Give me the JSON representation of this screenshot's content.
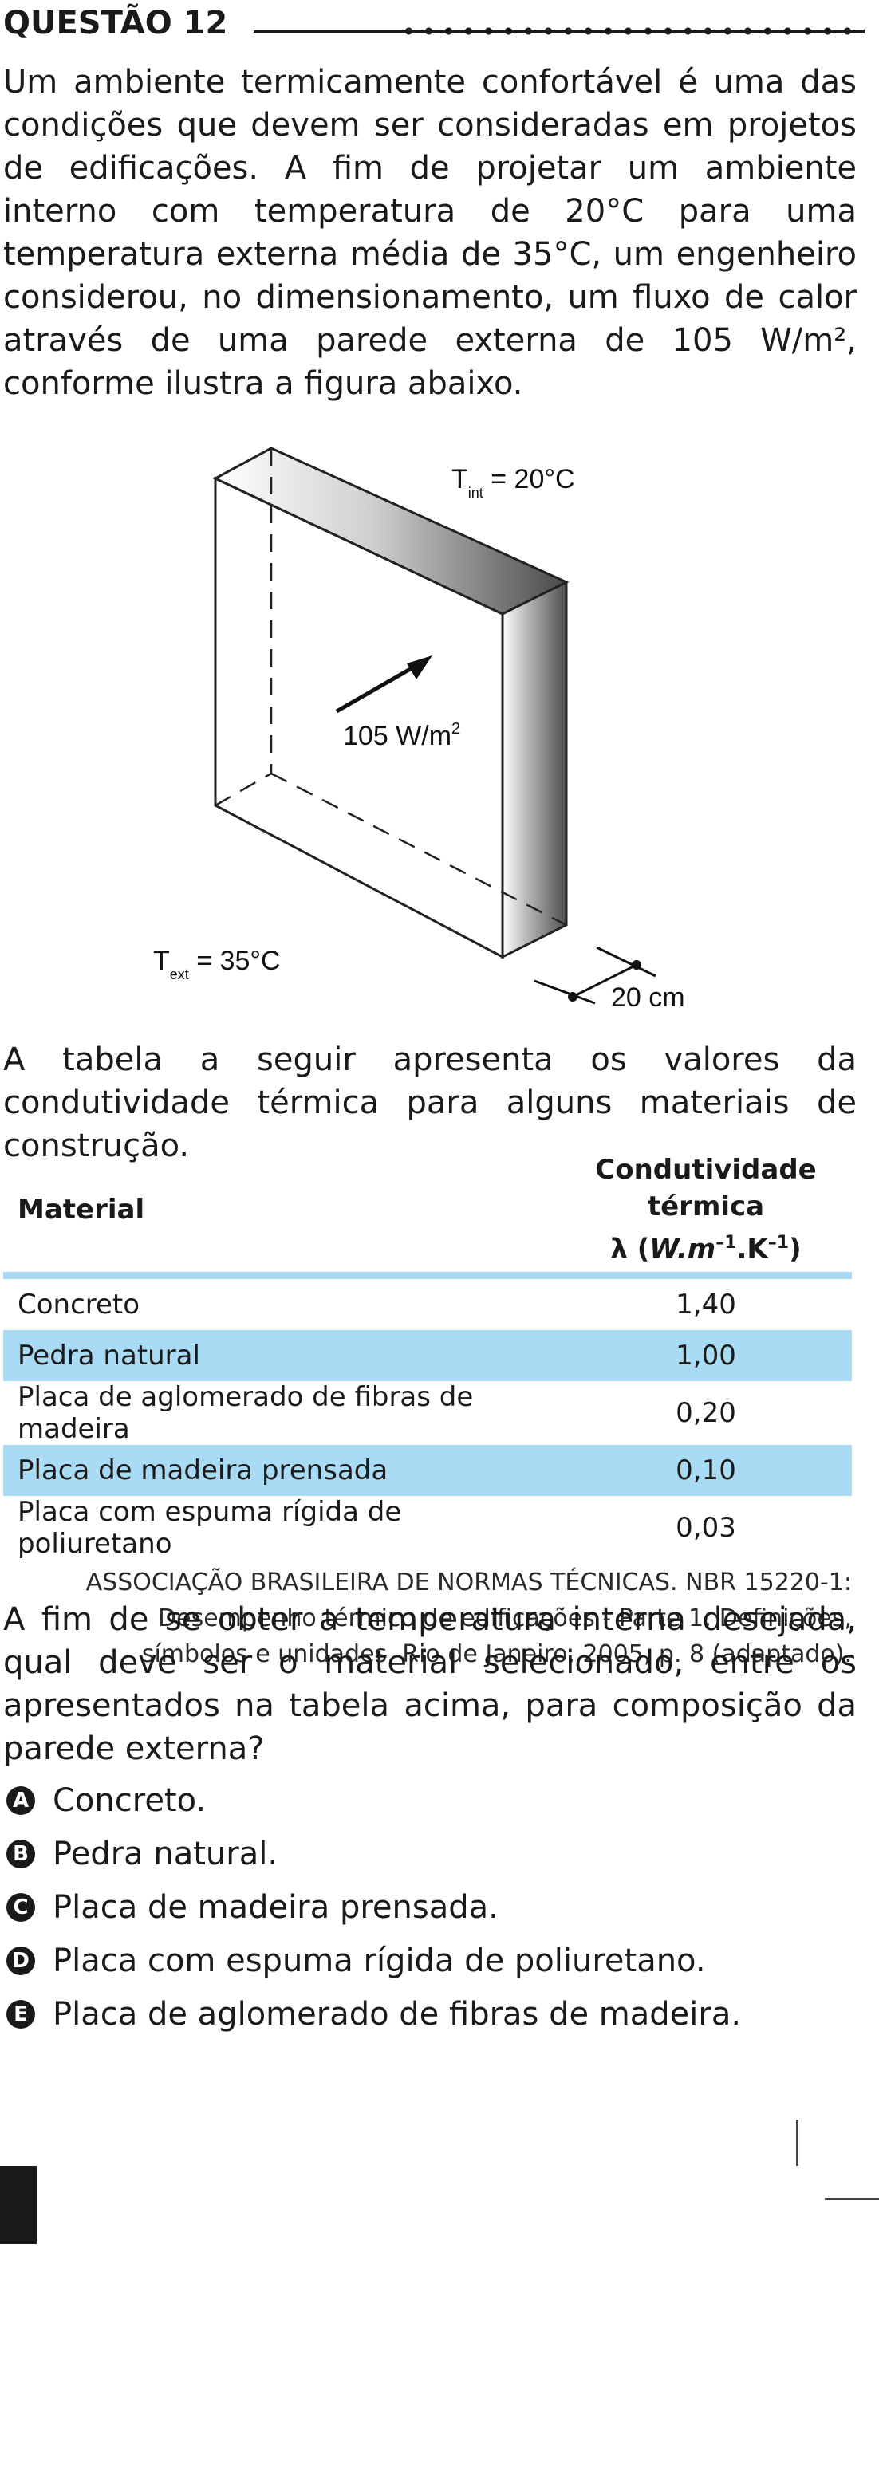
{
  "question": {
    "title": "QUESTÃO 12",
    "intro": "Um ambiente termicamente confortável é uma das condições que devem ser consideradas em projetos de edificações. A fim de projetar um ambiente interno com temperatura de 20°C para uma temperatura externa média de 35°C, um engenheiro considerou, no dimensionamento, um fluxo de calor através de uma parede externa de 105 W/m², conforme ilustra a figura abaixo.",
    "table_intro": "A tabela a seguir apresenta os valores da condutividade térmica para alguns materiais de construção.",
    "prompt": "A fim de se obter a temperatura interna desejada, qual deve ser o material selecionado, entre os apresentados na tabela acima, para composição da parede externa?"
  },
  "figure": {
    "t_int_label": "T",
    "t_int_sub": "int",
    "t_int_value": " = 20°C",
    "t_ext_label": "T",
    "t_ext_sub": "ext",
    "t_ext_value": " = 35°C",
    "flux_value": "105 W/m",
    "flux_sup": "2",
    "thickness": "20 cm"
  },
  "table": {
    "header_material": "Material",
    "header_cond_line1": "Condutividade",
    "header_cond_line2": "térmica",
    "header_cond_lambda": "λ (",
    "header_cond_W": "W.m",
    "header_cond_exp1": "–1",
    "header_cond_K": ".K",
    "header_cond_exp2": "–1",
    "header_cond_close": ")",
    "rows": [
      {
        "material": "Concreto",
        "value": "1,40"
      },
      {
        "material": "Pedra natural",
        "value": "1,00"
      },
      {
        "material": "Placa de aglomerado de fibras de madeira",
        "value": "0,20"
      },
      {
        "material": "Placa de madeira prensada",
        "value": "0,10"
      },
      {
        "material": "Placa com espuma rígida de poliuretano",
        "value": "0,03"
      }
    ],
    "row_highlight_color": "#a9dcf4"
  },
  "source": {
    "line1": "ASSOCIAÇÃO BRASILEIRA DE NORMAS TÉCNICAS. NBR 15220-1:",
    "line2": "Desempenho térmico de edificações - Parte 1: Definições,",
    "line3": "símbolos e unidades. Rio de Janeiro, 2005, p. 8 (adaptado)."
  },
  "options": [
    {
      "letter": "A",
      "text": "Concreto."
    },
    {
      "letter": "B",
      "text": "Pedra natural."
    },
    {
      "letter": "C",
      "text": "Placa de madeira prensada."
    },
    {
      "letter": "D",
      "text": "Placa com espuma rígida de poliuretano."
    },
    {
      "letter": "E",
      "text": "Placa de aglomerado de fibras de madeira."
    }
  ]
}
